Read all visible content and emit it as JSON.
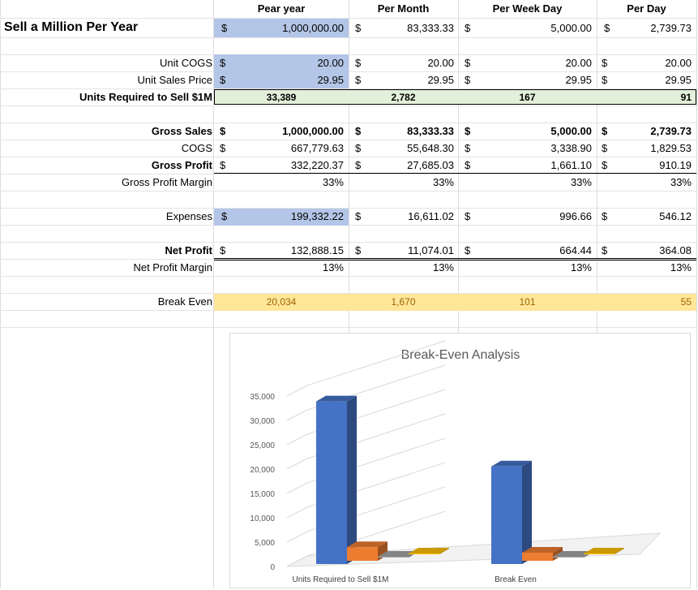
{
  "title": "Sell a Million Per Year",
  "headers": {
    "year": "Pear year",
    "month": "Per Month",
    "week": "Per Week Day",
    "day": "Per Day"
  },
  "currency": "$",
  "top_values": {
    "year": "1,000,000.00",
    "month": "83,333.33",
    "week": "5,000.00",
    "day": "2,739.73"
  },
  "rows": {
    "unit_cogs": {
      "label": "Unit COGS",
      "year": "20.00",
      "month": "20.00",
      "week": "20.00",
      "day": "20.00"
    },
    "unit_price": {
      "label": "Unit Sales Price",
      "year": "29.95",
      "month": "29.95",
      "week": "29.95",
      "day": "29.95"
    },
    "units_required": {
      "label": "Units Required to Sell $1M",
      "year": "33,389",
      "month": "2,782",
      "week": "167",
      "day": "91"
    },
    "gross_sales": {
      "label": "Gross Sales",
      "year": "1,000,000.00",
      "month": "83,333.33",
      "week": "5,000.00",
      "day": "2,739.73"
    },
    "cogs": {
      "label": "COGS",
      "year": "667,779.63",
      "month": "55,648.30",
      "week": "3,338.90",
      "day": "1,829.53"
    },
    "gross_profit": {
      "label": "Gross Profit",
      "year": "332,220.37",
      "month": "27,685.03",
      "week": "1,661.10",
      "day": "910.19"
    },
    "gross_margin": {
      "label": "Gross Profit Margin",
      "year": "33%",
      "month": "33%",
      "week": "33%",
      "day": "33%"
    },
    "expenses": {
      "label": "Expenses",
      "year": "199,332.22",
      "month": "16,611.02",
      "week": "996.66",
      "day": "546.12"
    },
    "net_profit": {
      "label": "Net Profit",
      "year": "132,888.15",
      "month": "11,074.01",
      "week": "664.44",
      "day": "364.08"
    },
    "net_margin": {
      "label": "Net Profit Margin",
      "year": "13%",
      "month": "13%",
      "week": "13%",
      "day": "13%"
    },
    "break_even": {
      "label": "Break Even",
      "year": "20,034",
      "month": "1,670",
      "week": "101",
      "day": "55"
    }
  },
  "colors": {
    "input_fill": "#b4c6e7",
    "units_fill": "#e2efda",
    "breakeven_fill": "#ffe699",
    "breakeven_text": "#9c6500",
    "s1": "#4472c4",
    "s2": "#ed7d31",
    "s3": "#a5a5a5",
    "s4": "#ffc000"
  },
  "chart_data": {
    "type": "bar",
    "title": "Break-Even Analysis",
    "categories": [
      "Units Required to Sell $1M",
      "Break Even"
    ],
    "series": [
      {
        "values": [
          33389,
          20034
        ]
      },
      {
        "values": [
          2782,
          1670
        ]
      },
      {
        "values": [
          167,
          101
        ]
      },
      {
        "values": [
          91,
          55
        ]
      }
    ],
    "yticks": [
      "35,000",
      "30,000",
      "25,000",
      "20,000",
      "15,000",
      "10,000",
      "5,000",
      "0"
    ],
    "ylim": [
      0,
      35000
    ],
    "xlabel": "",
    "ylabel": "",
    "legend": "none",
    "grid": true,
    "style": "3d-clustered-column"
  }
}
